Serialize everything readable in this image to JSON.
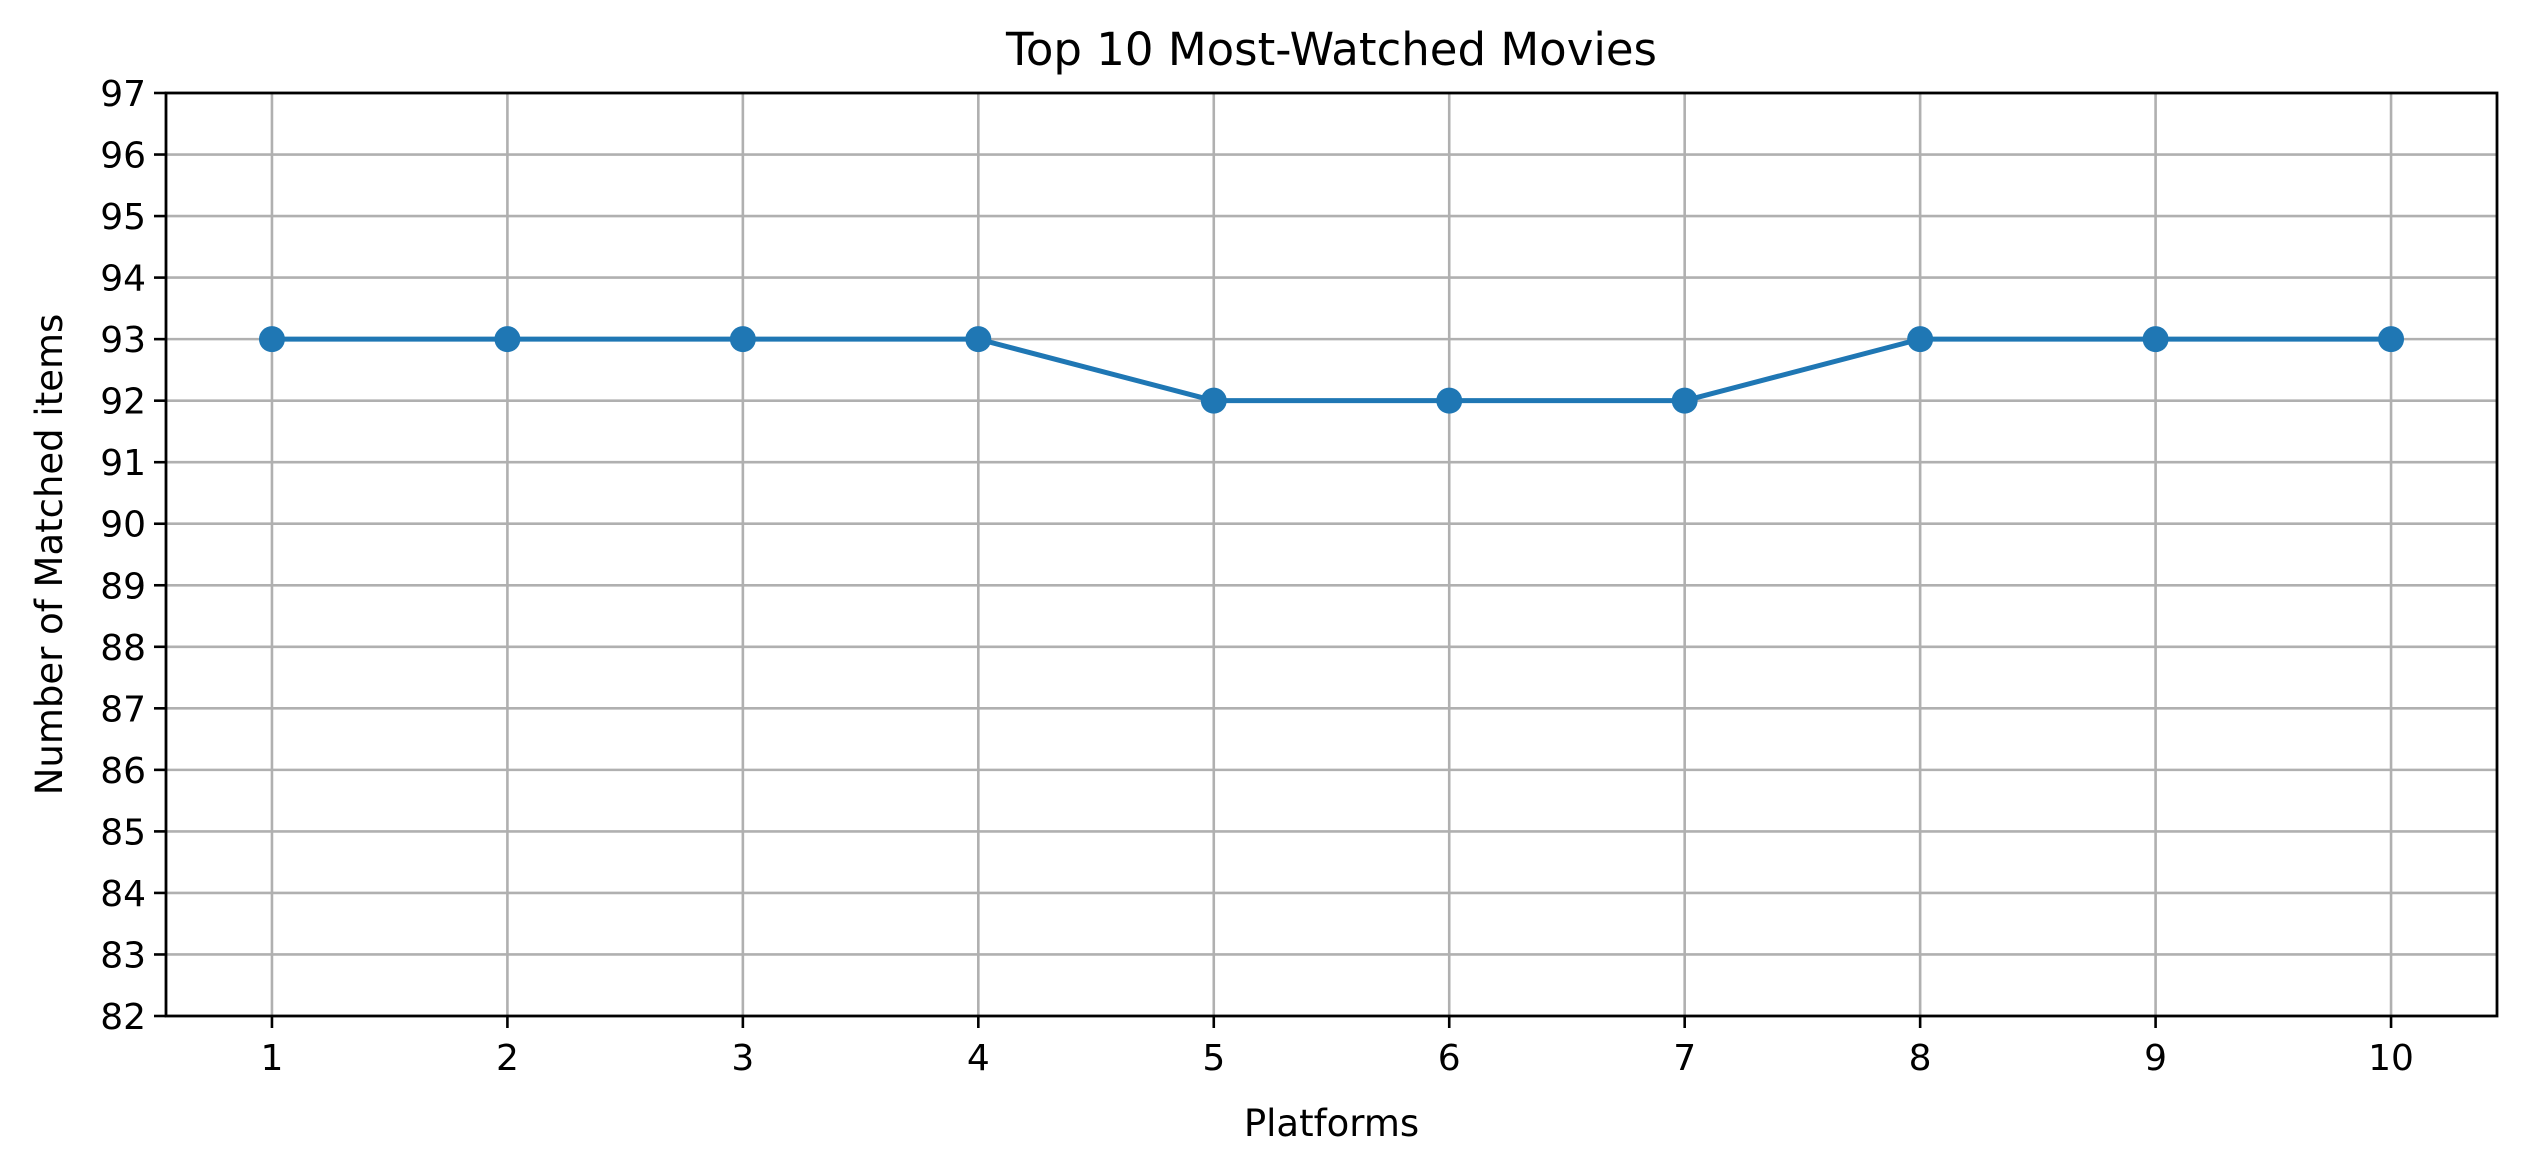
{
  "chart_data": {
    "type": "line",
    "title": "Top 10 Most-Watched Movies",
    "xlabel": "Platforms",
    "ylabel": "Number of Matched items",
    "x": [
      1,
      2,
      3,
      4,
      5,
      6,
      7,
      8,
      9,
      10
    ],
    "x_tick_labels": [
      "1",
      "2",
      "3",
      "4",
      "5",
      "6",
      "7",
      "8",
      "9",
      "10"
    ],
    "y_tick_labels": [
      "82",
      "83",
      "84",
      "85",
      "86",
      "87",
      "88",
      "89",
      "90",
      "91",
      "92",
      "93",
      "94",
      "95",
      "96",
      "97"
    ],
    "xlim": [
      0.55,
      10.45
    ],
    "ylim": [
      82,
      97
    ],
    "grid": true,
    "series": [
      {
        "values": [
          93,
          93,
          93,
          93,
          92,
          92,
          92,
          93,
          93,
          93
        ],
        "color": "#1f77b4",
        "marker": "circle"
      }
    ]
  }
}
